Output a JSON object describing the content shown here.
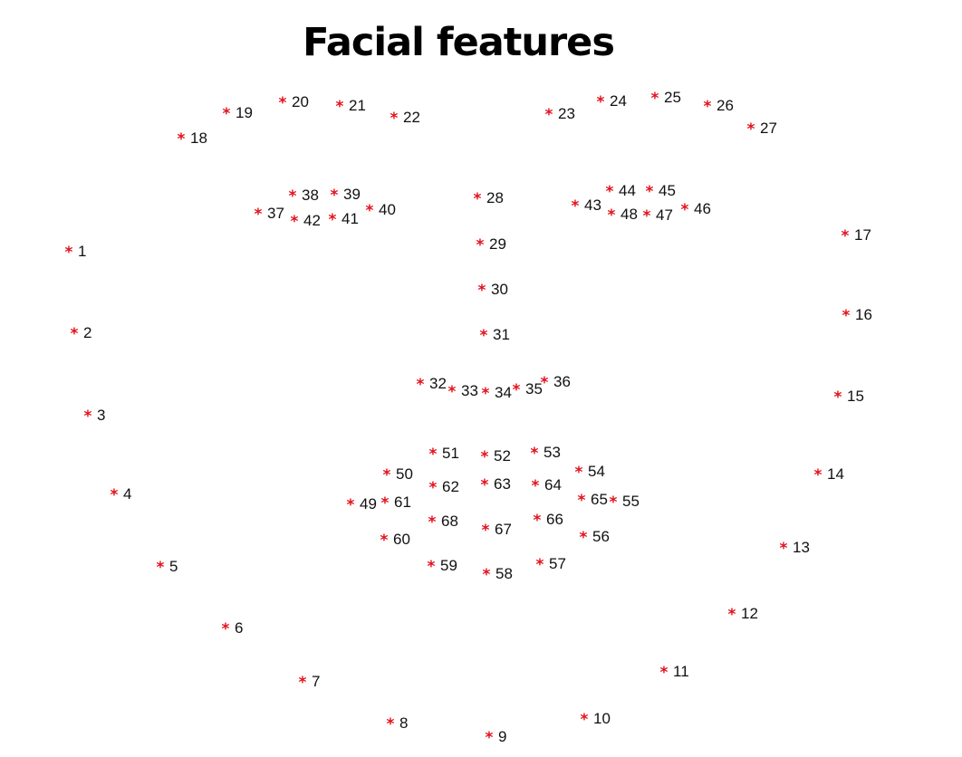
{
  "title": "Facial features",
  "marker_symbol": "*",
  "colors": {
    "marker": "#e3101c",
    "label": "#111111",
    "background": "#ffffff"
  },
  "landmarks": [
    {
      "id": "1"
    },
    {
      "id": "2"
    },
    {
      "id": "3"
    },
    {
      "id": "4"
    },
    {
      "id": "5"
    },
    {
      "id": "6"
    },
    {
      "id": "7"
    },
    {
      "id": "8"
    },
    {
      "id": "9"
    },
    {
      "id": "10"
    },
    {
      "id": "11"
    },
    {
      "id": "12"
    },
    {
      "id": "13"
    },
    {
      "id": "14"
    },
    {
      "id": "15"
    },
    {
      "id": "16"
    },
    {
      "id": "17"
    },
    {
      "id": "18"
    },
    {
      "id": "19"
    },
    {
      "id": "20"
    },
    {
      "id": "21"
    },
    {
      "id": "22"
    },
    {
      "id": "23"
    },
    {
      "id": "24"
    },
    {
      "id": "25"
    },
    {
      "id": "26"
    },
    {
      "id": "27"
    },
    {
      "id": "28"
    },
    {
      "id": "29"
    },
    {
      "id": "30"
    },
    {
      "id": "31"
    },
    {
      "id": "32"
    },
    {
      "id": "33"
    },
    {
      "id": "34"
    },
    {
      "id": "35"
    },
    {
      "id": "36"
    },
    {
      "id": "37"
    },
    {
      "id": "38"
    },
    {
      "id": "39"
    },
    {
      "id": "40"
    },
    {
      "id": "41"
    },
    {
      "id": "42"
    },
    {
      "id": "43"
    },
    {
      "id": "44"
    },
    {
      "id": "45"
    },
    {
      "id": "46"
    },
    {
      "id": "47"
    },
    {
      "id": "48"
    },
    {
      "id": "49"
    },
    {
      "id": "50"
    },
    {
      "id": "51"
    },
    {
      "id": "52"
    },
    {
      "id": "53"
    },
    {
      "id": "54"
    },
    {
      "id": "55"
    },
    {
      "id": "56"
    },
    {
      "id": "57"
    },
    {
      "id": "58"
    },
    {
      "id": "59"
    },
    {
      "id": "60"
    },
    {
      "id": "61"
    },
    {
      "id": "62"
    },
    {
      "id": "63"
    },
    {
      "id": "64"
    },
    {
      "id": "65"
    },
    {
      "id": "66"
    },
    {
      "id": "67"
    },
    {
      "id": "68"
    }
  ]
}
